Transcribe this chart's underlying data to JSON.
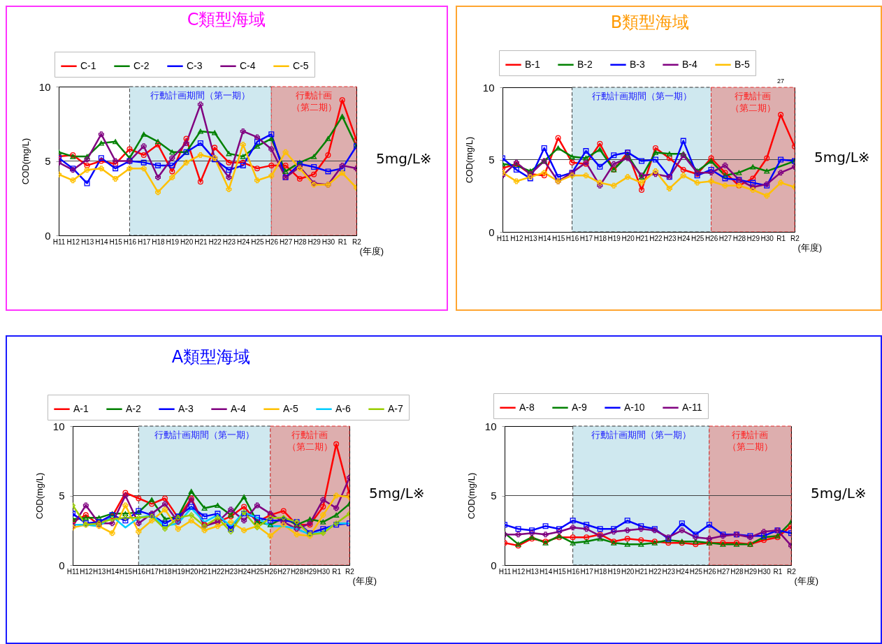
{
  "chart_data": [
    {
      "type": "line",
      "title": "C類型海域",
      "ylabel": "COD(mg/L)",
      "xlabel": "(年度)",
      "legend": "top",
      "grid": false,
      "categories": [
        "H11",
        "H12",
        "H13",
        "H14",
        "H15",
        "H16",
        "H17",
        "H18",
        "H19",
        "H20",
        "H21",
        "H22",
        "H23",
        "H24",
        "H25",
        "H26",
        "H27",
        "H28",
        "H29",
        "H30",
        "R1",
        "R2"
      ],
      "ylim": [
        0,
        10
      ],
      "yticks": [
        0,
        5,
        10
      ],
      "ref_lines": [
        {
          "axis": "y",
          "value": 5,
          "label": "5mg/L※"
        }
      ],
      "bands": [
        {
          "axis": "x",
          "from": "H16",
          "to": "H26",
          "label": "行動計画期間（第一期）",
          "color": "#cde7ef"
        },
        {
          "axis": "x",
          "from": "H26",
          "to": "R2",
          "label": "行動計画（第二期）",
          "color": "#dcaaaa"
        }
      ],
      "series": [
        {
          "name": "C-1",
          "color": "#ff0000",
          "marker": "circle",
          "values": [
            5.3,
            5.4,
            4.7,
            5.0,
            4.8,
            5.8,
            5.4,
            6.1,
            4.3,
            6.5,
            3.6,
            5.9,
            4.9,
            4.9,
            4.5,
            4.7,
            4.7,
            3.8,
            4.1,
            5.4,
            9.1,
            6.4
          ]
        },
        {
          "name": "C-2",
          "color": "#008000",
          "marker": "triangle",
          "values": [
            5.6,
            5.3,
            5.3,
            6.2,
            6.3,
            5.2,
            6.8,
            6.3,
            5.6,
            5.6,
            7.0,
            6.9,
            5.5,
            5.3,
            6.0,
            6.5,
            4.3,
            4.9,
            5.3,
            6.5,
            8.0,
            6.0
          ]
        },
        {
          "name": "C-3",
          "color": "#0000ff",
          "marker": "square",
          "values": [
            5.2,
            4.5,
            3.5,
            5.2,
            4.5,
            5.0,
            4.9,
            4.7,
            4.7,
            5.6,
            6.2,
            5.1,
            4.4,
            4.7,
            6.3,
            6.8,
            3.9,
            4.8,
            4.6,
            4.3,
            4.5,
            6.0
          ]
        },
        {
          "name": "C-4",
          "color": "#800080",
          "marker": "cross",
          "values": [
            4.9,
            4.4,
            5.1,
            6.8,
            5.0,
            5.0,
            6.0,
            3.9,
            5.2,
            6.2,
            8.8,
            5.2,
            3.9,
            7.0,
            6.6,
            5.8,
            3.9,
            4.6,
            3.5,
            3.4,
            4.7,
            4.5
          ]
        },
        {
          "name": "C-5",
          "color": "#ffc000",
          "marker": "cross",
          "values": [
            4.1,
            3.7,
            4.4,
            4.5,
            3.8,
            4.5,
            4.5,
            2.9,
            3.9,
            4.9,
            5.4,
            5.2,
            3.1,
            6.1,
            3.7,
            4.0,
            5.6,
            4.5,
            3.4,
            3.4,
            4.2,
            3.2
          ]
        }
      ]
    },
    {
      "type": "line",
      "title": "B類型海域",
      "annotations": [
        "27"
      ],
      "ylabel": "COD(mg/L)",
      "xlabel": "(年度)",
      "legend": "top",
      "grid": false,
      "categories": [
        "H11",
        "H12",
        "H13",
        "H14",
        "H15",
        "H16",
        "H17",
        "H18",
        "H19",
        "H20",
        "H21",
        "H22",
        "H23",
        "H24",
        "H25",
        "H26",
        "H27",
        "H28",
        "H29",
        "H30",
        "R1",
        "R2"
      ],
      "ylim": [
        0,
        10
      ],
      "yticks": [
        0,
        5,
        10
      ],
      "ref_lines": [
        {
          "axis": "y",
          "value": 5,
          "label": "5mg/L※"
        }
      ],
      "bands": [
        {
          "axis": "x",
          "from": "H16",
          "to": "H26",
          "label": "行動計画期間（第一期）",
          "color": "#cde7ef"
        },
        {
          "axis": "x",
          "from": "H26",
          "to": "R2",
          "label": "行動計画（第二期）",
          "color": "#dcaaaa"
        }
      ],
      "series": [
        {
          "name": "B-1",
          "color": "#ff0000",
          "marker": "circle",
          "values": [
            4.4,
            4.7,
            4.0,
            3.9,
            6.5,
            4.8,
            4.7,
            6.1,
            4.3,
            5.5,
            2.9,
            5.8,
            5.1,
            4.3,
            4.0,
            5.1,
            4.1,
            3.2,
            3.7,
            5.1,
            8.1,
            5.9
          ]
        },
        {
          "name": "B-2",
          "color": "#008000",
          "marker": "triangle",
          "values": [
            4.7,
            4.6,
            4.2,
            4.9,
            5.8,
            5.2,
            5.1,
            5.7,
            4.3,
            5.3,
            3.8,
            5.5,
            5.4,
            5.4,
            4.2,
            4.9,
            3.9,
            4.1,
            4.5,
            4.2,
            null,
            4.9
          ]
        },
        {
          "name": "B-3",
          "color": "#0000ff",
          "marker": "square",
          "values": [
            5.1,
            4.3,
            3.7,
            5.8,
            3.8,
            4.1,
            5.6,
            4.5,
            5.3,
            5.5,
            4.9,
            5.0,
            3.8,
            6.3,
            3.9,
            4.3,
            3.7,
            3.6,
            3.4,
            3.2,
            5.0,
            4.9
          ]
        },
        {
          "name": "B-4",
          "color": "#800080",
          "marker": "cross",
          "values": [
            3.9,
            4.8,
            4.0,
            4.9,
            3.5,
            4.1,
            4.8,
            3.2,
            4.7,
            5.1,
            3.9,
            4.0,
            3.8,
            5.3,
            4.1,
            4.1,
            4.6,
            3.6,
            3.1,
            3.3,
            4.1,
            4.5
          ]
        },
        {
          "name": "B-5",
          "color": "#ffc000",
          "marker": "cross",
          "values": [
            4.1,
            3.5,
            3.8,
            4.1,
            3.5,
            3.9,
            3.9,
            3.4,
            3.2,
            3.8,
            3.4,
            4.2,
            3.0,
            3.9,
            3.4,
            3.5,
            3.2,
            3.2,
            2.9,
            2.5,
            3.4,
            3.1
          ]
        }
      ]
    },
    {
      "type": "line",
      "title": "A類型海域",
      "ylabel": "COD(mg/L)",
      "xlabel": "(年度)",
      "legend": "top",
      "grid": false,
      "categories": [
        "H11",
        "H12",
        "H13",
        "H14",
        "H15",
        "H16",
        "H17",
        "H18",
        "H19",
        "H20",
        "H21",
        "H22",
        "H23",
        "H24",
        "H25",
        "H26",
        "H27",
        "H28",
        "H29",
        "H30",
        "R1",
        "R2"
      ],
      "ylim": [
        0,
        10
      ],
      "yticks": [
        0,
        5,
        10
      ],
      "ref_lines": [
        {
          "axis": "y",
          "value": 5,
          "label": "5mg/L※"
        }
      ],
      "bands": [
        {
          "axis": "x",
          "from": "H16",
          "to": "H26",
          "label": "行動計画期間（第一期）",
          "color": "#cde7ef"
        },
        {
          "axis": "x",
          "from": "H26",
          "to": "R2",
          "label": "行動計画（第二期）",
          "color": "#dcaaaa"
        }
      ],
      "series": [
        {
          "name": "A-1",
          "color": "#ff0000",
          "marker": "circle",
          "values": [
            3.1,
            3.6,
            2.9,
            3.5,
            5.2,
            4.8,
            4.4,
            4.8,
            3.4,
            4.8,
            2.9,
            3.1,
            3.5,
            4.2,
            3.1,
            3.6,
            3.9,
            2.9,
            2.9,
            4.2,
            8.7,
            5.1
          ]
        },
        {
          "name": "A-2",
          "color": "#008000",
          "marker": "triangle",
          "values": [
            3.3,
            3.4,
            3.4,
            3.7,
            3.7,
            3.8,
            4.7,
            3.3,
            3.5,
            5.3,
            4.1,
            4.3,
            3.6,
            4.9,
            3.1,
            2.9,
            3.4,
            2.9,
            3.3,
            3.1,
            3.6,
            4.4
          ]
        },
        {
          "name": "A-3",
          "color": "#0000ff",
          "marker": "square",
          "values": [
            3.7,
            3.0,
            3.1,
            3.6,
            3.2,
            3.9,
            3.6,
            3.0,
            3.5,
            4.2,
            3.5,
            3.7,
            2.6,
            3.7,
            3.4,
            3.2,
            3.2,
            3.1,
            2.3,
            2.6,
            2.9,
            3.0
          ]
        },
        {
          "name": "A-4",
          "color": "#800080",
          "marker": "cross",
          "values": [
            2.8,
            4.3,
            3.0,
            3.0,
            5.0,
            3.0,
            3.7,
            4.4,
            3.1,
            4.7,
            2.8,
            3.1,
            4.0,
            3.2,
            4.3,
            3.7,
            3.1,
            2.6,
            3.0,
            4.7,
            4.1,
            6.3
          ]
        },
        {
          "name": "A-5",
          "color": "#ffc000",
          "marker": "cross",
          "values": [
            2.7,
            2.9,
            2.8,
            2.3,
            4.3,
            2.4,
            3.2,
            4.0,
            2.6,
            3.2,
            2.5,
            2.8,
            3.1,
            2.5,
            2.8,
            2.1,
            2.9,
            2.2,
            2.1,
            3.6,
            5.0,
            4.9
          ]
        },
        {
          "name": "A-6",
          "color": "#00ccff",
          "marker": "none",
          "values": [
            2.9,
            2.9,
            2.8,
            3.5,
            2.7,
            3.4,
            3.6,
            2.8,
            3.0,
            4.1,
            3.1,
            3.6,
            2.8,
            3.8,
            3.4,
            2.8,
            2.8,
            2.6,
            2.2,
            2.4,
            3.0,
            3.0
          ]
        },
        {
          "name": "A-7",
          "color": "#99cc00",
          "marker": "diamond",
          "values": [
            4.3,
            2.9,
            3.0,
            3.3,
            3.4,
            3.4,
            3.5,
            2.6,
            3.4,
            3.6,
            2.8,
            3.4,
            2.4,
            3.8,
            2.7,
            3.4,
            3.4,
            3.1,
            2.2,
            2.3,
            3.0,
            3.7
          ]
        }
      ]
    },
    {
      "type": "line",
      "ylabel": "COD(mg/L)",
      "xlabel": "(年度)",
      "legend": "top",
      "grid": false,
      "categories": [
        "H11",
        "H12",
        "H13",
        "H14",
        "H15",
        "H16",
        "H17",
        "H18",
        "H19",
        "H20",
        "H21",
        "H22",
        "H23",
        "H24",
        "H25",
        "H26",
        "H27",
        "H28",
        "H29",
        "H30",
        "R1",
        "R2"
      ],
      "ylim": [
        0,
        10
      ],
      "yticks": [
        0,
        5,
        10
      ],
      "ref_lines": [
        {
          "axis": "y",
          "value": 5,
          "label": "5mg/L※"
        }
      ],
      "bands": [
        {
          "axis": "x",
          "from": "H16",
          "to": "H26",
          "label": "行動計画期間（第一期）",
          "color": "#cde7ef"
        },
        {
          "axis": "x",
          "from": "H26",
          "to": "R2",
          "label": "行動計画（第二期）",
          "color": "#dcaaaa"
        }
      ],
      "series": [
        {
          "name": "A-8",
          "color": "#ff0000",
          "marker": "circle",
          "values": [
            1.6,
            1.4,
            1.9,
            1.7,
            2.0,
            2.0,
            2.0,
            2.2,
            1.7,
            1.9,
            1.8,
            1.7,
            1.6,
            1.6,
            1.5,
            1.6,
            1.6,
            1.6,
            1.5,
            1.8,
            2.0,
            2.8
          ]
        },
        {
          "name": "A-9",
          "color": "#008000",
          "marker": "triangle",
          "values": [
            2.3,
            1.5,
            2.0,
            1.6,
            2.1,
            1.6,
            1.7,
            1.9,
            1.6,
            1.5,
            1.5,
            1.6,
            1.8,
            1.7,
            1.7,
            1.6,
            1.5,
            1.5,
            1.5,
            2.0,
            2.1,
            3.1
          ]
        },
        {
          "name": "A-10",
          "color": "#0000ff",
          "marker": "square",
          "values": [
            2.9,
            2.6,
            2.5,
            2.8,
            2.6,
            3.2,
            2.9,
            2.6,
            2.6,
            3.2,
            2.8,
            2.6,
            1.9,
            3.0,
            2.2,
            2.9,
            2.2,
            2.2,
            2.1,
            2.1,
            2.5,
            2.3
          ]
        },
        {
          "name": "A-11",
          "color": "#800080",
          "marker": "cross",
          "values": [
            2.2,
            2.2,
            2.3,
            2.2,
            2.4,
            2.7,
            2.6,
            2.1,
            2.4,
            2.5,
            2.6,
            2.5,
            2.0,
            2.5,
            2.0,
            1.9,
            2.1,
            2.2,
            2.0,
            2.4,
            2.5,
            1.4
          ]
        }
      ]
    }
  ]
}
